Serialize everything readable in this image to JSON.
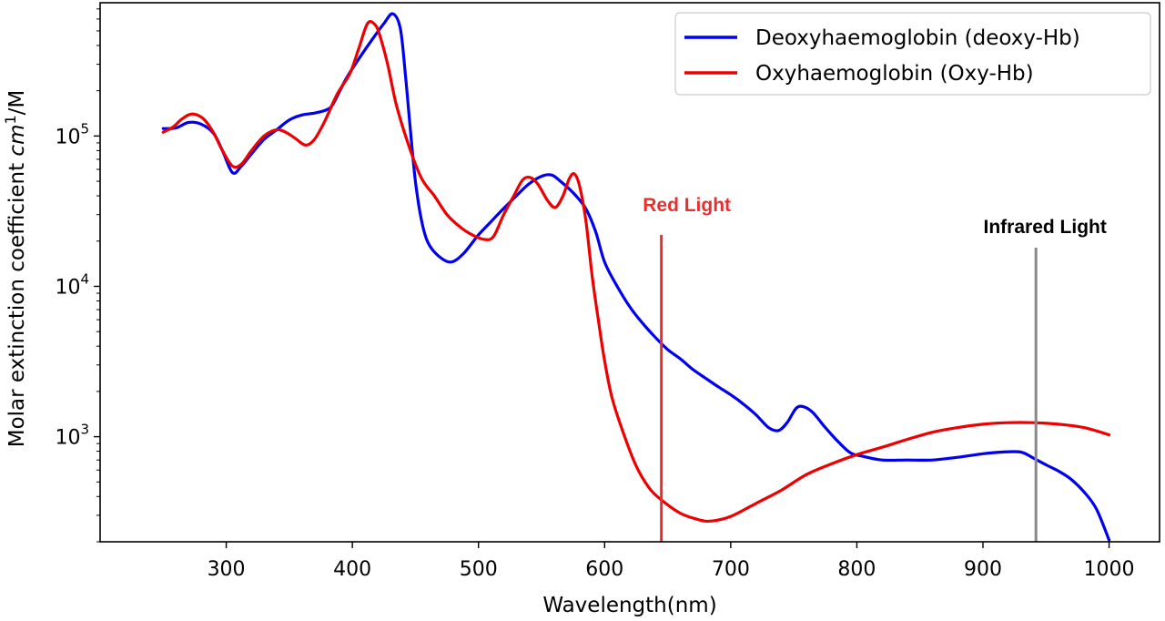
{
  "chart_data": {
    "type": "line",
    "xlabel": "Wavelength(nm)",
    "ylabel": "Molar extinction coefficient cm1/M",
    "ylabel_parts": {
      "prefix": "Molar extinction coefficient ",
      "unit": "cm",
      "sup": "1",
      "suffix": "/M"
    },
    "xlim": [
      200,
      1040
    ],
    "ylim": [
      200,
      770000
    ],
    "yscale": "log",
    "grid": false,
    "legend_position": "top-right",
    "xticks": [
      300,
      400,
      500,
      600,
      700,
      800,
      900,
      1000
    ],
    "yticks": [
      {
        "value": 1000,
        "base": "10",
        "exp": "3"
      },
      {
        "value": 10000,
        "base": "10",
        "exp": "4"
      },
      {
        "value": 100000,
        "base": "10",
        "exp": "5"
      }
    ],
    "series": [
      {
        "name": "Deoxyhaemoglobin (deoxy-Hb)",
        "color": "#0000ee",
        "points": [
          [
            250,
            112000
          ],
          [
            260,
            113000
          ],
          [
            270,
            123000
          ],
          [
            280,
            120000
          ],
          [
            290,
            104000
          ],
          [
            297,
            80000
          ],
          [
            305,
            57000
          ],
          [
            312,
            63000
          ],
          [
            320,
            76000
          ],
          [
            330,
            95000
          ],
          [
            340,
            110000
          ],
          [
            350,
            128000
          ],
          [
            360,
            138000
          ],
          [
            370,
            142000
          ],
          [
            380,
            150000
          ],
          [
            385,
            165000
          ],
          [
            395,
            240000
          ],
          [
            405,
            325000
          ],
          [
            415,
            430000
          ],
          [
            425,
            560000
          ],
          [
            432,
            650000
          ],
          [
            438,
            520000
          ],
          [
            442,
            260000
          ],
          [
            446,
            110000
          ],
          [
            450,
            50000
          ],
          [
            455,
            27000
          ],
          [
            460,
            19500
          ],
          [
            468,
            16000
          ],
          [
            478,
            14500
          ],
          [
            488,
            16500
          ],
          [
            500,
            22000
          ],
          [
            510,
            27000
          ],
          [
            520,
            33000
          ],
          [
            530,
            40000
          ],
          [
            540,
            48000
          ],
          [
            550,
            54000
          ],
          [
            558,
            55000
          ],
          [
            565,
            50000
          ],
          [
            575,
            42000
          ],
          [
            585,
            33000
          ],
          [
            593,
            23000
          ],
          [
            600,
            14500
          ],
          [
            610,
            10000
          ],
          [
            620,
            7300
          ],
          [
            630,
            5700
          ],
          [
            640,
            4600
          ],
          [
            650,
            3800
          ],
          [
            660,
            3300
          ],
          [
            670,
            2800
          ],
          [
            680,
            2450
          ],
          [
            690,
            2150
          ],
          [
            700,
            1900
          ],
          [
            710,
            1650
          ],
          [
            720,
            1400
          ],
          [
            730,
            1150
          ],
          [
            738,
            1100
          ],
          [
            745,
            1250
          ],
          [
            752,
            1550
          ],
          [
            758,
            1580
          ],
          [
            765,
            1450
          ],
          [
            775,
            1150
          ],
          [
            785,
            930
          ],
          [
            795,
            780
          ],
          [
            805,
            740
          ],
          [
            820,
            700
          ],
          [
            840,
            700
          ],
          [
            860,
            700
          ],
          [
            880,
            730
          ],
          [
            900,
            770
          ],
          [
            915,
            790
          ],
          [
            930,
            790
          ],
          [
            940,
            720
          ],
          [
            950,
            650
          ],
          [
            960,
            590
          ],
          [
            970,
            520
          ],
          [
            980,
            430
          ],
          [
            990,
            330
          ],
          [
            1000,
            205
          ]
        ]
      },
      {
        "name": "Oxyhaemoglobin (Oxy-Hb)",
        "color": "#ee0000",
        "points": [
          [
            250,
            106000
          ],
          [
            258,
            115000
          ],
          [
            265,
            130000
          ],
          [
            273,
            140000
          ],
          [
            282,
            130000
          ],
          [
            290,
            105000
          ],
          [
            297,
            80000
          ],
          [
            305,
            63000
          ],
          [
            312,
            65000
          ],
          [
            320,
            80000
          ],
          [
            330,
            100000
          ],
          [
            340,
            110000
          ],
          [
            348,
            105000
          ],
          [
            355,
            96000
          ],
          [
            363,
            87000
          ],
          [
            370,
            95000
          ],
          [
            378,
            125000
          ],
          [
            388,
            190000
          ],
          [
            398,
            260000
          ],
          [
            405,
            380000
          ],
          [
            412,
            560000
          ],
          [
            418,
            550000
          ],
          [
            422,
            460000
          ],
          [
            428,
            300000
          ],
          [
            435,
            160000
          ],
          [
            445,
            85000
          ],
          [
            455,
            52000
          ],
          [
            465,
            40000
          ],
          [
            475,
            30000
          ],
          [
            485,
            25000
          ],
          [
            495,
            22000
          ],
          [
            505,
            20500
          ],
          [
            512,
            21500
          ],
          [
            520,
            30000
          ],
          [
            528,
            40000
          ],
          [
            535,
            51000
          ],
          [
            541,
            53000
          ],
          [
            547,
            48000
          ],
          [
            555,
            37000
          ],
          [
            561,
            33500
          ],
          [
            567,
            40000
          ],
          [
            572,
            52000
          ],
          [
            576,
            56000
          ],
          [
            580,
            47000
          ],
          [
            585,
            28000
          ],
          [
            590,
            12000
          ],
          [
            595,
            6000
          ],
          [
            600,
            3200
          ],
          [
            606,
            1800
          ],
          [
            615,
            1050
          ],
          [
            625,
            640
          ],
          [
            635,
            460
          ],
          [
            645,
            380
          ],
          [
            660,
            310
          ],
          [
            675,
            280
          ],
          [
            685,
            275
          ],
          [
            700,
            295
          ],
          [
            720,
            360
          ],
          [
            740,
            440
          ],
          [
            760,
            560
          ],
          [
            780,
            660
          ],
          [
            800,
            760
          ],
          [
            820,
            850
          ],
          [
            840,
            960
          ],
          [
            860,
            1070
          ],
          [
            880,
            1150
          ],
          [
            900,
            1210
          ],
          [
            920,
            1240
          ],
          [
            940,
            1240
          ],
          [
            960,
            1210
          ],
          [
            980,
            1150
          ],
          [
            1000,
            1030
          ]
        ]
      }
    ],
    "annotations": [
      {
        "label": "Red Light",
        "x": 645,
        "color": "#e53030"
      },
      {
        "label": "Infrared Light",
        "x": 942,
        "color": "#000000",
        "line_color": "#888888"
      }
    ]
  }
}
